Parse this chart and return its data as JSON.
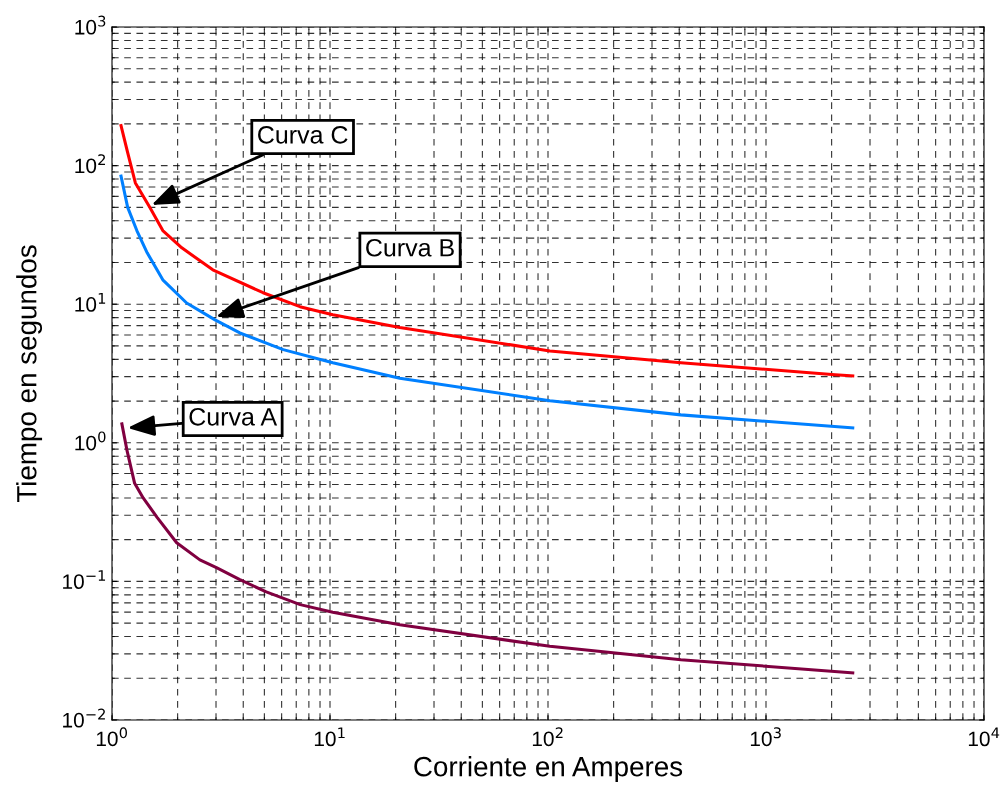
{
  "chart_data": {
    "type": "line",
    "xlabel": "Corriente en Amperes",
    "ylabel": "Tiempo en segundos",
    "log": "xy",
    "grid": true,
    "line_style": "solid",
    "marker": "none",
    "xlim": [
      1,
      10000
    ],
    "ylim": [
      0.01,
      1000
    ],
    "xticks": [
      {
        "value": 1,
        "label": "10$^{0}$"
      },
      {
        "value": 10,
        "label": "10$^{1}$"
      },
      {
        "value": 100,
        "label": "10$^{2}$"
      },
      {
        "value": 1000,
        "label": "10$^{3}$"
      },
      {
        "value": 10000,
        "label": "10$^{4}$"
      }
    ],
    "yticks": [
      {
        "value": 0.01,
        "label": "10$^{−2}$"
      },
      {
        "value": 0.1,
        "label": "10$^{−1}$"
      },
      {
        "value": 1,
        "label": "10$^{0}$"
      },
      {
        "value": 10,
        "label": "10$^{1}$"
      },
      {
        "value": 100,
        "label": "10$^{2}$"
      },
      {
        "value": 1000,
        "label": "10$^{3}$"
      }
    ],
    "series": [
      {
        "color": "#ff0000",
        "x": [
          1.1,
          1.18,
          1.28,
          1.49,
          1.71,
          2.09,
          2.9,
          4.93,
          7.28,
          10.3,
          20.9,
          102,
          407,
          2075,
          2500
        ],
        "values": [
          194,
          124,
          75,
          50,
          34,
          25.5,
          17.7,
          12.1,
          9.6,
          8.4,
          6.8,
          4.6,
          3.78,
          3.1,
          3.04
        ]
      },
      {
        "color": "#0080ff",
        "x": [
          1.1,
          1.18,
          1.3,
          1.45,
          1.71,
          2.2,
          2.97,
          3.86,
          6.1,
          10.3,
          20.9,
          102,
          407,
          2500
        ],
        "values": [
          84,
          50,
          34,
          23.5,
          15,
          10.2,
          7.7,
          6.2,
          4.7,
          3.78,
          2.92,
          2.01,
          1.59,
          1.28
        ]
      },
      {
        "color": "#800040",
        "x": [
          1.11,
          1.17,
          1.27,
          1.39,
          1.61,
          1.98,
          2.53,
          3.03,
          3.86,
          5.1,
          7.3,
          10.3,
          20.9,
          102,
          407,
          2500
        ],
        "values": [
          1.37,
          0.89,
          0.51,
          0.4,
          0.29,
          0.19,
          0.143,
          0.125,
          0.103,
          0.084,
          0.068,
          0.06,
          0.0486,
          0.034,
          0.0272,
          0.0219
        ]
      }
    ],
    "annotations": [
      {
        "text": "Curva C",
        "x": 1.52,
        "y": 52
      },
      {
        "text": "Curva B",
        "x": 3.0,
        "y": 8.1
      },
      {
        "text": "Curva A",
        "x": 1.18,
        "y": 1.28
      }
    ]
  }
}
